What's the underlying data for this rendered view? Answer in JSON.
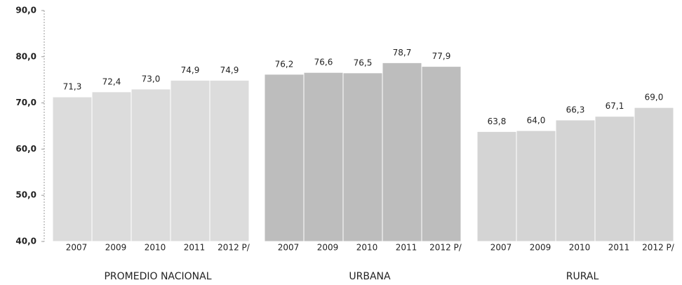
{
  "chart_data": {
    "type": "grouped-bar",
    "categories": [
      "2007",
      "2009",
      "2010",
      "2011",
      "2012 P/"
    ],
    "groups": [
      {
        "name": "PROMEDIO NACIONAL",
        "color": "#dcdcdc",
        "values": [
          71.3,
          72.4,
          73.0,
          74.9,
          74.9
        ],
        "value_labels": [
          "71,3",
          "72,4",
          "73,0",
          "74,9",
          "74,9"
        ]
      },
      {
        "name": "URBANA",
        "color": "#bdbdbd",
        "values": [
          76.2,
          76.6,
          76.5,
          78.7,
          77.9
        ],
        "value_labels": [
          "76,2",
          "76,6",
          "76,5",
          "78,7",
          "77,9"
        ]
      },
      {
        "name": "RURAL",
        "color": "#d4d4d4",
        "values": [
          63.8,
          64.0,
          66.3,
          67.1,
          69.0
        ],
        "value_labels": [
          "63,8",
          "64,0",
          "66,3",
          "67,1",
          "69,0"
        ]
      }
    ],
    "ylim": [
      40,
      90
    ],
    "yticks": [
      {
        "value": 40,
        "label": "40,0"
      },
      {
        "value": 50,
        "label": "50,0"
      },
      {
        "value": 60,
        "label": "60,0"
      },
      {
        "value": 70,
        "label": "70,0"
      },
      {
        "value": 80,
        "label": "80,0"
      },
      {
        "value": 90,
        "label": "90,0"
      }
    ]
  }
}
